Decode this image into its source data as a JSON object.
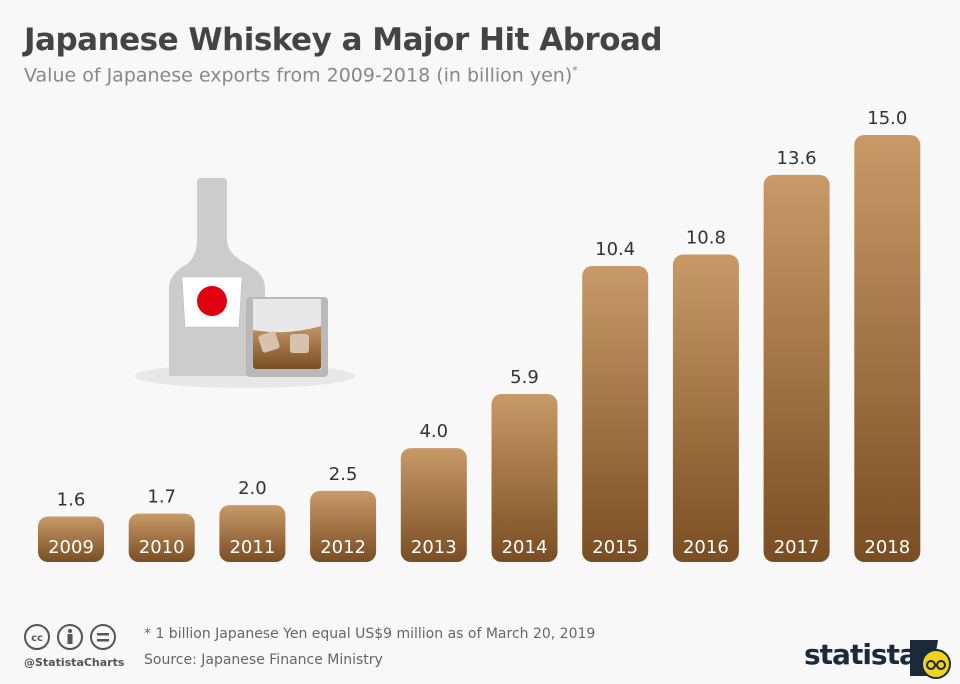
{
  "header": {
    "title": "Japanese Whiskey a Major Hit Abroad",
    "subtitle": "Value of Japanese exports from 2009-2018 (in billion yen)",
    "subtitle_mark": "*"
  },
  "chart_data": {
    "type": "bar",
    "categories": [
      "2009",
      "2010",
      "2011",
      "2012",
      "2013",
      "2014",
      "2015",
      "2016",
      "2017",
      "2018"
    ],
    "values": [
      1.6,
      1.7,
      2.0,
      2.5,
      4.0,
      5.9,
      10.4,
      10.8,
      13.6,
      15.0
    ],
    "value_labels": [
      "1.6",
      "1.7",
      "2.0",
      "2.5",
      "4.0",
      "5.9",
      "10.4",
      "10.8",
      "13.6",
      "15.0"
    ],
    "title": "Japanese Whiskey a Major Hit Abroad",
    "xlabel": "",
    "ylabel": "",
    "ylim": [
      0,
      15
    ],
    "grid": false,
    "colors": {
      "bar_top": "#c99a68",
      "bar_bottom": "#7a4e23"
    }
  },
  "footer": {
    "note": "* 1 billion Japanese Yen equal US$9 million as of March 20, 2019",
    "source": "Source: Japanese Finance Ministry",
    "handle": "@StatistaCharts",
    "logo": "statista",
    "icons": [
      "cc-icon",
      "by-icon",
      "nd-icon"
    ]
  }
}
